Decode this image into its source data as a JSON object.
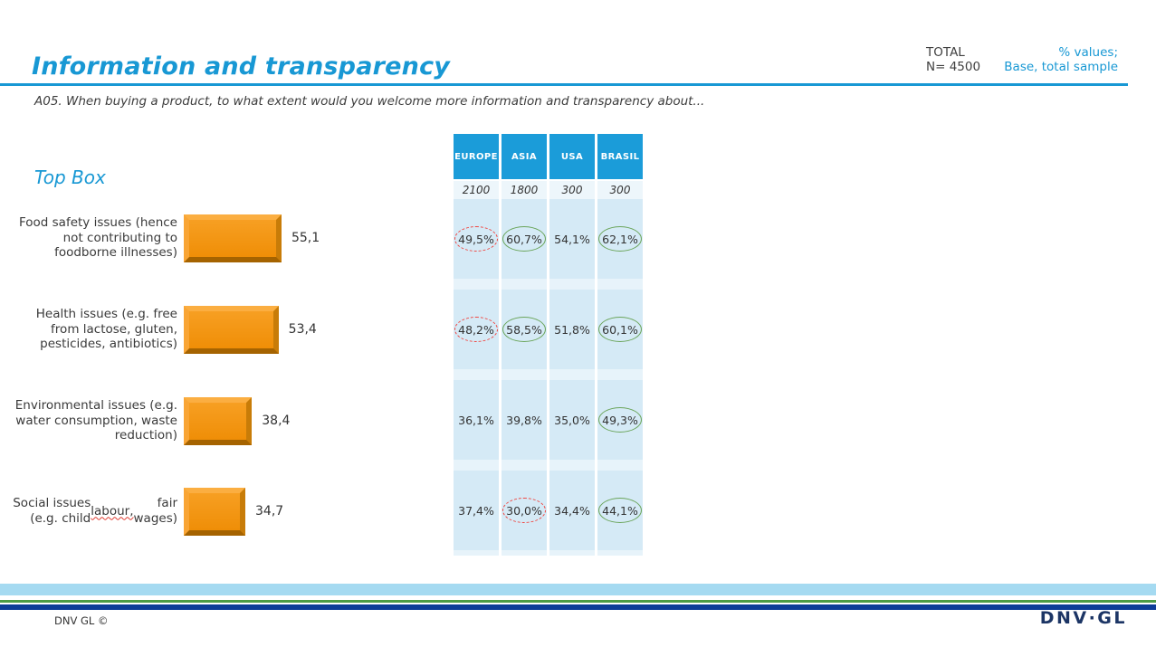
{
  "slide": {
    "title": "Information and transparency",
    "question": "A05. When buying a product, to what extent would you welcome more information and transparency about...",
    "total_label": "TOTAL",
    "total_base": "N= 4500",
    "values_note_line1": "% values;",
    "values_note_line2": "Base, total sample",
    "footer_copyright": "DNV GL ©",
    "logo_text": "DNV·GL"
  },
  "colors": {
    "accent_blue": "#1898d4",
    "table_header_blue": "#1b9cd9",
    "cell_light_blue": "#d5eaf6",
    "bar_orange": "#f1910c",
    "oval_green": "#6ba55b",
    "oval_red": "#f04641",
    "footer_sky": "#a5daf1",
    "footer_green": "#4d9b45",
    "footer_navy": "#0d3c97",
    "logo_navy": "#1c3565"
  },
  "chart_data": {
    "type": "bar",
    "orientation": "horizontal",
    "title": "Top Box",
    "xlabel": "",
    "ylabel": "",
    "xlim": [
      0,
      60
    ],
    "grid": false,
    "legend": false,
    "categories": [
      "Food safety issues (hence not contributing to foodborne illnesses)",
      "Health issues (e.g. free from lactose, gluten, pesticides, antibiotics)",
      "Environmental issues (e.g. water consumption, waste reduction)",
      "Social issues (e.g. child labour, fair wages)"
    ],
    "values": [
      55.1,
      53.4,
      38.4,
      34.7
    ],
    "value_labels": [
      "55,1",
      "53,4",
      "38,4",
      "34,7"
    ],
    "table": {
      "columns": [
        "EUROPE",
        "ASIA",
        "USA",
        "BRASIL"
      ],
      "bases_display": [
        "2100",
        "1800",
        "300",
        "300"
      ],
      "rows": [
        {
          "category": "Food safety issues (hence not contributing to foodborne illnesses)",
          "values": [
            "49,5%",
            "60,7%",
            "54,1%",
            "62,1%"
          ],
          "values_pct": [
            49.5,
            60.7,
            54.1,
            62.1
          ],
          "markers": [
            "red-dashed",
            "green",
            "none",
            "green"
          ]
        },
        {
          "category": "Health issues (e.g. free from lactose, gluten, pesticides, antibiotics)",
          "values": [
            "48,2%",
            "58,5%",
            "51,8%",
            "60,1%"
          ],
          "values_pct": [
            48.2,
            58.5,
            51.8,
            60.1
          ],
          "markers": [
            "red-dashed",
            "green",
            "none",
            "green"
          ]
        },
        {
          "category": "Environmental issues (e.g. water consumption, waste reduction)",
          "values": [
            "36,1%",
            "39,8%",
            "35,0%",
            "49,3%"
          ],
          "values_pct": [
            36.1,
            39.8,
            35.0,
            49.3
          ],
          "markers": [
            "none",
            "none",
            "none",
            "green"
          ]
        },
        {
          "category": "Social issues (e.g. child labour, fair wages)",
          "values": [
            "37,4%",
            "30,0%",
            "34,4%",
            "44,1%"
          ],
          "values_pct": [
            37.4,
            30.0,
            34.4,
            44.1
          ],
          "markers": [
            "none",
            "red-dashed",
            "none",
            "green"
          ],
          "squiggle_word": "labour,"
        }
      ]
    }
  }
}
